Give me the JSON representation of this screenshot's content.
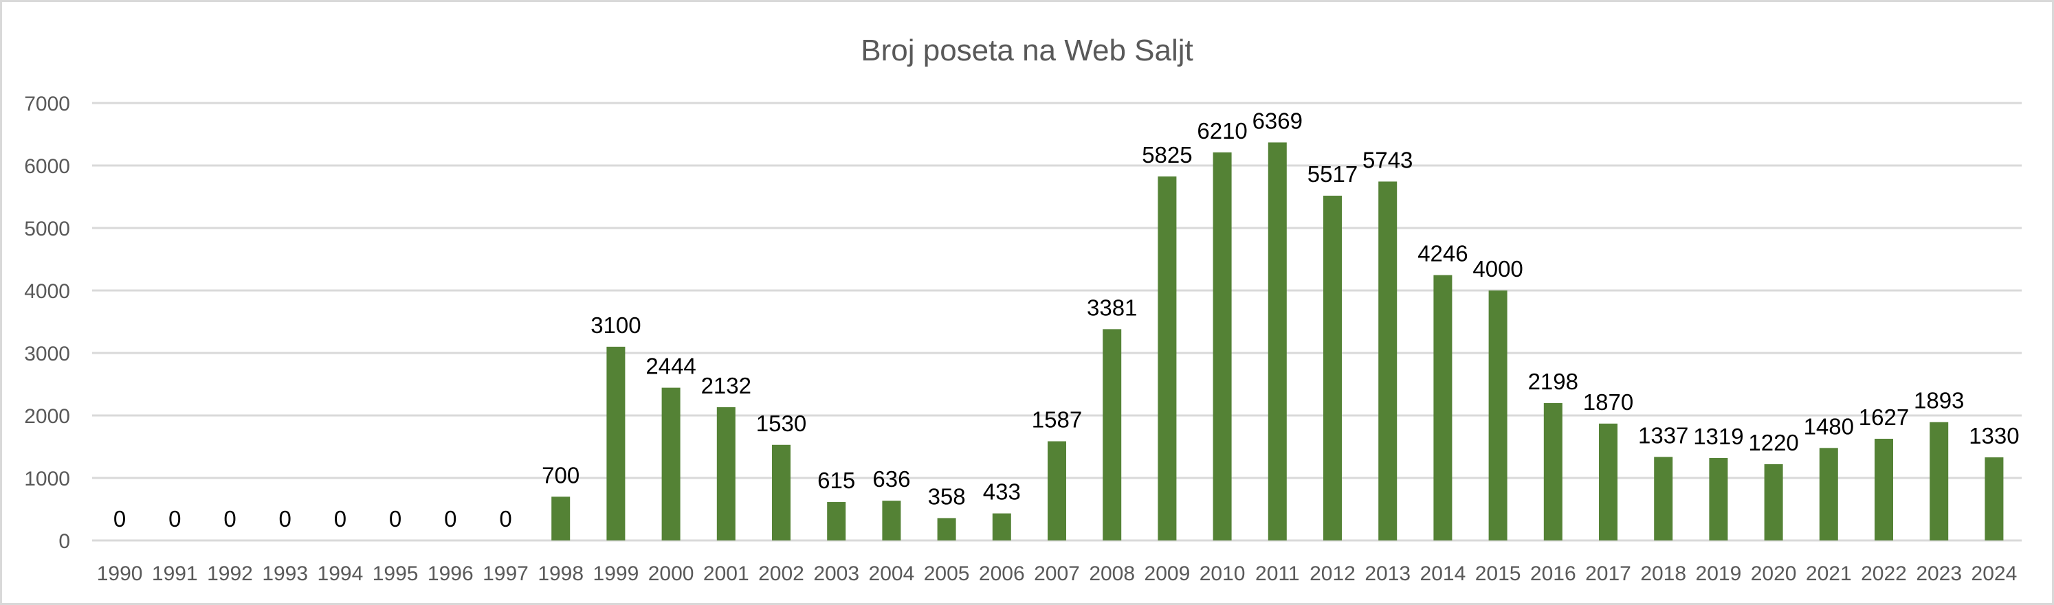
{
  "chart_data": {
    "type": "bar",
    "title": "Broj poseta na Web Saljt",
    "xlabel": "",
    "ylabel": "",
    "ylim": [
      0,
      7000
    ],
    "yticks": [
      0,
      1000,
      2000,
      3000,
      4000,
      5000,
      6000,
      7000
    ],
    "grid": true,
    "legend": "none",
    "bar_color": "#548235",
    "categories": [
      "1990",
      "1991",
      "1992",
      "1993",
      "1994",
      "1995",
      "1996",
      "1997",
      "1998",
      "1999",
      "2000",
      "2001",
      "2002",
      "2003",
      "2004",
      "2005",
      "2006",
      "2007",
      "2008",
      "2009",
      "2010",
      "2011",
      "2012",
      "2013",
      "2014",
      "2015",
      "2016",
      "2017",
      "2018",
      "2019",
      "2020",
      "2021",
      "2022",
      "2023",
      "2024"
    ],
    "values": [
      0,
      0,
      0,
      0,
      0,
      0,
      0,
      0,
      700,
      3100,
      2444,
      2132,
      1530,
      615,
      636,
      358,
      433,
      1587,
      3381,
      5825,
      6210,
      6369,
      5517,
      5743,
      4246,
      4000,
      2198,
      1870,
      1337,
      1319,
      1220,
      1480,
      1627,
      1893,
      1330
    ]
  }
}
